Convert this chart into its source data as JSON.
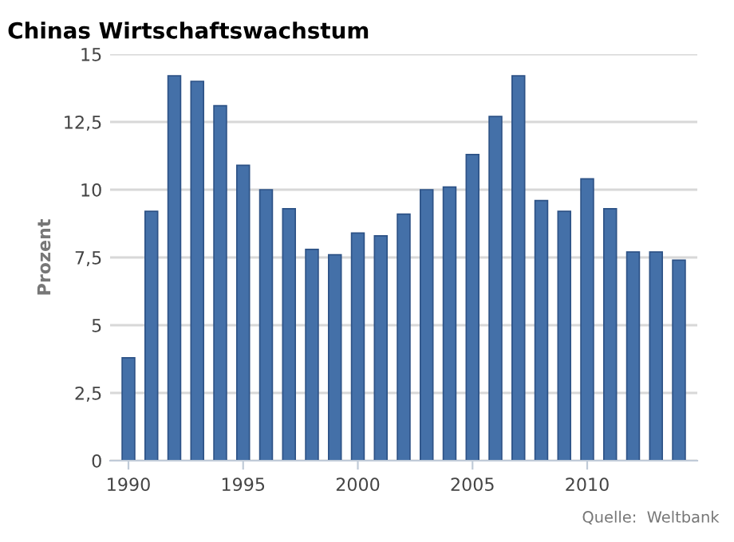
{
  "chart_data": {
    "type": "bar",
    "title": "Chinas Wirtschaftswachstum",
    "ylabel": "Prozent",
    "x": [
      1990,
      1991,
      1992,
      1993,
      1994,
      1995,
      1996,
      1997,
      1998,
      1999,
      2000,
      2001,
      2002,
      2003,
      2004,
      2005,
      2006,
      2007,
      2008,
      2009,
      2010,
      2011,
      2012,
      2013,
      2014
    ],
    "values": [
      3.8,
      9.2,
      14.2,
      14.0,
      13.1,
      10.9,
      10.0,
      9.3,
      7.8,
      7.6,
      8.4,
      8.3,
      9.1,
      10.0,
      10.1,
      11.3,
      12.7,
      14.2,
      9.6,
      9.2,
      10.4,
      9.3,
      7.7,
      7.7,
      7.4
    ],
    "color": "#4470a8",
    "xlim": [
      1989.2,
      2014.8
    ],
    "xticks": [
      1990,
      1995,
      2000,
      2005,
      2010
    ],
    "ylim": [
      0,
      15
    ],
    "yticks": [
      0,
      {
        "value": 2.5,
        "label": "2,5"
      },
      5,
      {
        "value": 7.5,
        "label": "7,5"
      },
      10,
      {
        "value": 12.5,
        "label": "12,5"
      },
      15
    ],
    "grid": "y",
    "annotations": [
      "Quelle:  Weltbank"
    ]
  }
}
